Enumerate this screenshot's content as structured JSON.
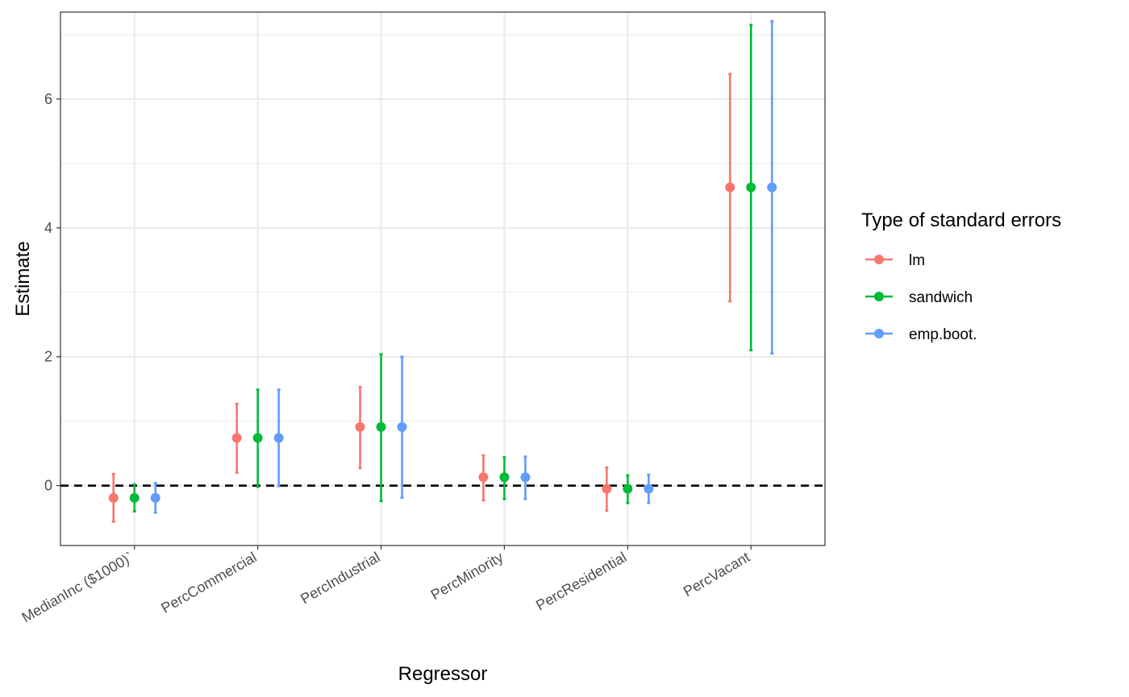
{
  "chart_data": {
    "type": "scatter",
    "subtype": "point-range",
    "xlabel": "Regressor",
    "ylabel": "Estimate",
    "categories": [
      "MedianInc ($1000)`",
      "PercCommercial",
      "PercIndustrial",
      "PercMinority",
      "PercResidential",
      "PercVacant"
    ],
    "ylim": [
      -0.93,
      7.35
    ],
    "yticks": [
      0,
      2,
      4,
      6
    ],
    "reference_line": {
      "y": 0,
      "style": "dashed",
      "color": "#000000"
    },
    "grid": true,
    "legend": {
      "title": "Type of standard errors",
      "position": "right"
    },
    "series": [
      {
        "name": "lm",
        "color": "#F8766D",
        "estimate": [
          -0.19,
          0.74,
          0.91,
          0.13,
          -0.05,
          4.63
        ],
        "lower": [
          -0.56,
          0.2,
          0.27,
          -0.23,
          -0.39,
          2.86
        ],
        "upper": [
          0.18,
          1.27,
          1.53,
          0.47,
          0.28,
          6.39
        ]
      },
      {
        "name": "sandwich",
        "color": "#00BA38",
        "estimate": [
          -0.19,
          0.74,
          0.91,
          0.13,
          -0.05,
          4.63
        ],
        "lower": [
          -0.4,
          -0.02,
          -0.24,
          -0.21,
          -0.27,
          2.1
        ],
        "upper": [
          0.02,
          1.49,
          2.04,
          0.44,
          0.16,
          7.15
        ]
      },
      {
        "name": "emp.boot.",
        "color": "#619CFF",
        "estimate": [
          -0.19,
          0.74,
          0.91,
          0.13,
          -0.05,
          4.63
        ],
        "lower": [
          -0.42,
          -0.01,
          -0.19,
          -0.21,
          -0.27,
          2.05
        ],
        "upper": [
          0.04,
          1.49,
          2.0,
          0.45,
          0.17,
          7.21
        ]
      }
    ]
  }
}
